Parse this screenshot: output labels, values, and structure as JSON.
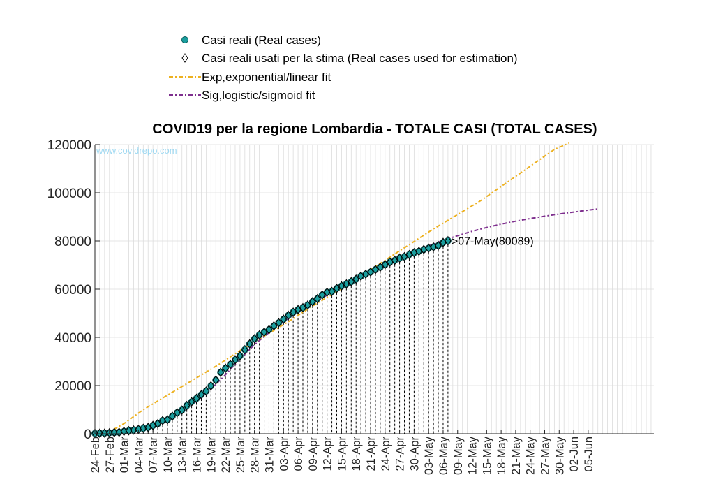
{
  "chart_data": {
    "type": "scatter",
    "title": "COVID19 per la regione Lombardia - TOTALE CASI (TOTAL CASES)",
    "watermark": "www.covidrepo.com",
    "xlabel": "",
    "ylabel": "",
    "x_start": "24-Feb",
    "x_end": "05-Jun",
    "ylim": [
      0,
      120000
    ],
    "yticks": [
      0,
      20000,
      40000,
      60000,
      80000,
      100000,
      120000
    ],
    "ytick_labels": [
      "0",
      "20000",
      "40000",
      "60000",
      "80000",
      "100000",
      "120000"
    ],
    "xtick_labels": [
      "24-Feb",
      "27-Feb",
      "01-Mar",
      "04-Mar",
      "07-Mar",
      "10-Mar",
      "13-Mar",
      "16-Mar",
      "19-Mar",
      "22-Mar",
      "25-Mar",
      "28-Mar",
      "31-Mar",
      "03-Apr",
      "06-Apr",
      "09-Apr",
      "12-Apr",
      "15-Apr",
      "18-Apr",
      "21-Apr",
      "24-Apr",
      "27-Apr",
      "30-Apr",
      "03-May",
      "06-May",
      "09-May",
      "12-May",
      "15-May",
      "18-May",
      "21-May",
      "24-May",
      "27-May",
      "30-May",
      "02-Jun",
      "05-Jun"
    ],
    "grid": true,
    "legend_placement": "top-left",
    "annotation": ">07-May(80089)",
    "colors": {
      "real": "#1a9e9e",
      "real_edge": "#0b5f5f",
      "exp_fit": "#edb120",
      "sig_fit": "#7e2f8e"
    },
    "series": [
      {
        "name": "Casi reali (Real cases)",
        "kind": "real",
        "points": [
          [
            "24-Feb",
            172
          ],
          [
            "25-Feb",
            240
          ],
          [
            "26-Feb",
            258
          ],
          [
            "27-Feb",
            403
          ],
          [
            "28-Feb",
            531
          ],
          [
            "29-Feb",
            615
          ],
          [
            "01-Mar",
            984
          ],
          [
            "02-Mar",
            1254
          ],
          [
            "03-Mar",
            1520
          ],
          [
            "04-Mar",
            1820
          ],
          [
            "05-Mar",
            2251
          ],
          [
            "06-Mar",
            2612
          ],
          [
            "07-Mar",
            3420
          ],
          [
            "08-Mar",
            4189
          ],
          [
            "09-Mar",
            5469
          ],
          [
            "10-Mar",
            5791
          ],
          [
            "11-Mar",
            7280
          ],
          [
            "12-Mar",
            8725
          ],
          [
            "13-Mar",
            9820
          ],
          [
            "14-Mar",
            11685
          ],
          [
            "15-Mar",
            13272
          ],
          [
            "16-Mar",
            14649
          ],
          [
            "17-Mar",
            16220
          ],
          [
            "18-Mar",
            17713
          ],
          [
            "19-Mar",
            19884
          ],
          [
            "20-Mar",
            22264
          ],
          [
            "21-Mar",
            25515
          ],
          [
            "22-Mar",
            27206
          ],
          [
            "23-Mar",
            28761
          ],
          [
            "24-Mar",
            30703
          ],
          [
            "25-Mar",
            32346
          ],
          [
            "26-Mar",
            34889
          ],
          [
            "27-Mar",
            37298
          ],
          [
            "28-Mar",
            39415
          ],
          [
            "29-Mar",
            41007
          ],
          [
            "30-Mar",
            42161
          ],
          [
            "31-Mar",
            43208
          ],
          [
            "01-Apr",
            44773
          ],
          [
            "02-Apr",
            46065
          ],
          [
            "03-Apr",
            47520
          ],
          [
            "04-Apr",
            49118
          ],
          [
            "05-Apr",
            50455
          ],
          [
            "06-Apr",
            51534
          ],
          [
            "07-Apr",
            52325
          ],
          [
            "08-Apr",
            53414
          ],
          [
            "09-Apr",
            54802
          ],
          [
            "10-Apr",
            56048
          ],
          [
            "11-Apr",
            57592
          ],
          [
            "12-Apr",
            58729
          ],
          [
            "13-Apr",
            59052
          ],
          [
            "14-Apr",
            60314
          ],
          [
            "15-Apr",
            61326
          ],
          [
            "16-Apr",
            62153
          ],
          [
            "17-Apr",
            63094
          ],
          [
            "18-Apr",
            64135
          ],
          [
            "19-Apr",
            65381
          ],
          [
            "20-Apr",
            66236
          ],
          [
            "21-Apr",
            67098
          ],
          [
            "22-Apr",
            68127
          ],
          [
            "23-Apr",
            69092
          ],
          [
            "24-Apr",
            70201
          ],
          [
            "25-Apr",
            71256
          ],
          [
            "26-Apr",
            71969
          ],
          [
            "27-Apr",
            72889
          ],
          [
            "28-Apr",
            73479
          ],
          [
            "29-Apr",
            74348
          ],
          [
            "30-Apr",
            75134
          ],
          [
            "01-May",
            75732
          ],
          [
            "02-May",
            76469
          ],
          [
            "03-May",
            77002
          ],
          [
            "04-May",
            77528
          ],
          [
            "05-May",
            78105
          ],
          [
            "06-May",
            79369
          ],
          [
            "07-May",
            80089
          ]
        ]
      },
      {
        "name": "Casi reali usati per la stima (Real cases used for estimation)",
        "kind": "used",
        "from": "24-Feb",
        "to": "07-May"
      },
      {
        "name": "Exp,exponential/linear fit",
        "kind": "exp_fit",
        "points": [
          [
            "24-Feb",
            0
          ],
          [
            "27-Feb",
            800
          ],
          [
            "01-Mar",
            4200
          ],
          [
            "05-Mar",
            10000
          ],
          [
            "10-Mar",
            16000
          ],
          [
            "15-Mar",
            22000
          ],
          [
            "20-Mar",
            28000
          ],
          [
            "25-Mar",
            34500
          ],
          [
            "30-Mar",
            40500
          ],
          [
            "04-Apr",
            46500
          ],
          [
            "09-Apr",
            53000
          ],
          [
            "14-Apr",
            59000
          ],
          [
            "19-Apr",
            65500
          ],
          [
            "24-Apr",
            72000
          ],
          [
            "29-Apr",
            78500
          ],
          [
            "04-May",
            85000
          ],
          [
            "09-May",
            91000
          ],
          [
            "14-May",
            97000
          ],
          [
            "19-May",
            104000
          ],
          [
            "24-May",
            111000
          ],
          [
            "29-May",
            118000
          ],
          [
            "01-Jun",
            122000
          ]
        ]
      },
      {
        "name": "Sig,logistic/sigmoid fit",
        "kind": "sig_fit",
        "points": [
          [
            "24-Feb",
            100
          ],
          [
            "27-Feb",
            180
          ],
          [
            "01-Mar",
            500
          ],
          [
            "04-Mar",
            1300
          ],
          [
            "07-Mar",
            2800
          ],
          [
            "10-Mar",
            5200
          ],
          [
            "13-Mar",
            9000
          ],
          [
            "16-Mar",
            13500
          ],
          [
            "19-Mar",
            18500
          ],
          [
            "22-Mar",
            24500
          ],
          [
            "25-Mar",
            31000
          ],
          [
            "28-Mar",
            37000
          ],
          [
            "31-Mar",
            42000
          ],
          [
            "03-Apr",
            46500
          ],
          [
            "06-Apr",
            50500
          ],
          [
            "09-Apr",
            54000
          ],
          [
            "12-Apr",
            57500
          ],
          [
            "15-Apr",
            60800
          ],
          [
            "18-Apr",
            64000
          ],
          [
            "21-Apr",
            67200
          ],
          [
            "24-Apr",
            70200
          ],
          [
            "27-Apr",
            73000
          ],
          [
            "30-Apr",
            75600
          ],
          [
            "03-May",
            78000
          ],
          [
            "06-May",
            80200
          ],
          [
            "09-May",
            82200
          ],
          [
            "12-May",
            84000
          ],
          [
            "15-May",
            85600
          ],
          [
            "18-May",
            87000
          ],
          [
            "21-May",
            88200
          ],
          [
            "24-May",
            89300
          ],
          [
            "27-May",
            90300
          ],
          [
            "30-May",
            91200
          ],
          [
            "02-Jun",
            92000
          ],
          [
            "05-Jun",
            92800
          ],
          [
            "07-Jun",
            93300
          ]
        ]
      }
    ]
  }
}
